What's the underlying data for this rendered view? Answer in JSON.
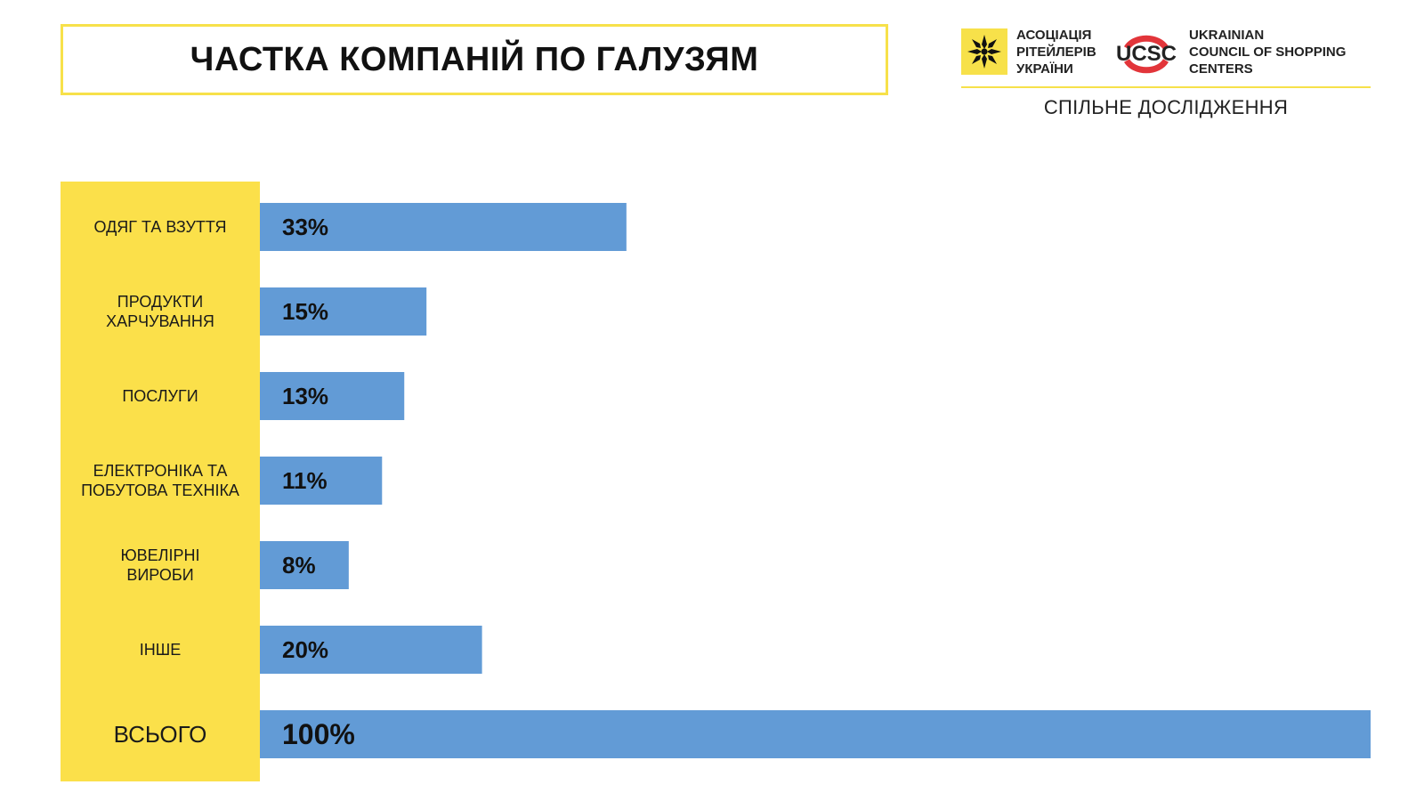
{
  "header": {
    "title": "ЧАСТКА КОМПАНІЙ ПО ГАЛУЗЯМ",
    "subtitle": "СПІЛЬНЕ ДОСЛІДЖЕННЯ",
    "logo_left": {
      "icon": "star-ornament-icon",
      "lines": [
        "АСОЦІАЦІЯ",
        "РІТЕЙЛЕРІВ",
        "УКРАЇНИ"
      ]
    },
    "logo_right": {
      "mark": "UCSC",
      "lines": [
        "UKRAINIAN",
        "COUNCIL OF SHOPPING",
        "CENTERS"
      ]
    }
  },
  "colors": {
    "bar": "#629bd6",
    "label_column": "#fbe04a",
    "title_border": "#f7e14a",
    "ucsc_red": "#e2353a"
  },
  "chart_data": {
    "type": "bar",
    "orientation": "horizontal",
    "categories": [
      [
        "ОДЯГ ТА ВЗУТТЯ"
      ],
      [
        "ПРОДУКТИ",
        "ХАРЧУВАННЯ"
      ],
      [
        "ПОСЛУГИ"
      ],
      [
        "ЕЛЕКТРОНІКА ТА",
        "ПОБУТОВА ТЕХНІКА"
      ],
      [
        "ЮВЕЛІРНІ",
        "ВИРОБИ"
      ],
      [
        "ІНШЕ"
      ],
      [
        "ВСЬОГО"
      ]
    ],
    "values": [
      33,
      15,
      13,
      11,
      8,
      20,
      100
    ],
    "data_labels": [
      "33%",
      "15%",
      "13%",
      "11%",
      "8%",
      "20%",
      "100%"
    ],
    "xlim": [
      0,
      100
    ],
    "grid": false
  }
}
